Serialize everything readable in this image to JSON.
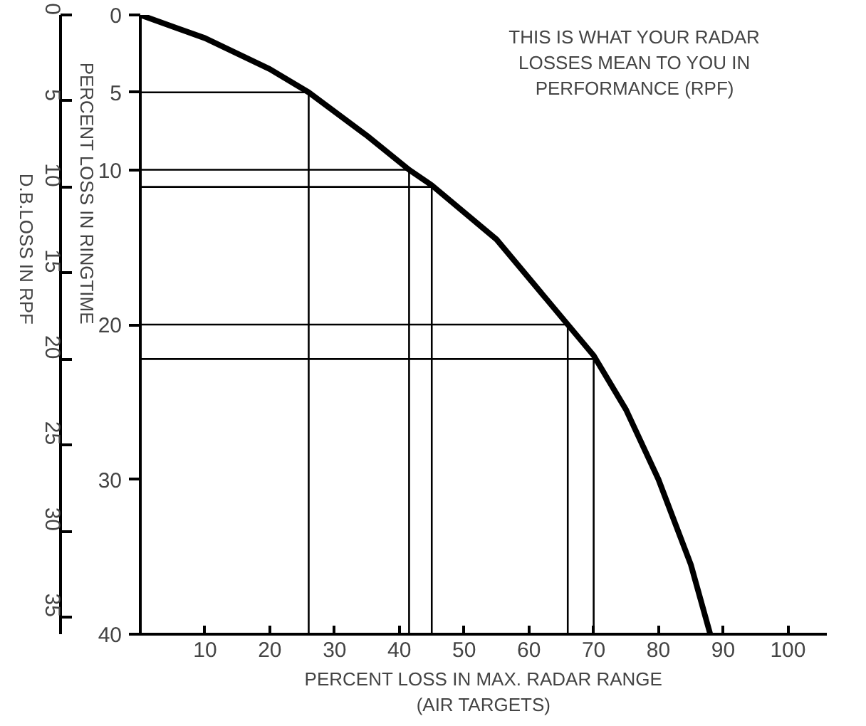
{
  "chart_data": {
    "type": "line",
    "annotations": [
      "THIS IS WHAT YOUR RADAR\nLOSSES MEAN TO YOU IN\nPERFORMANCE (RPF)"
    ],
    "xlabel": "PERCENT LOSS IN MAX. RADAR RANGE\n(AIR TARGETS)",
    "ylabel": "PERCENT LOSS IN RINGTIME",
    "y2label": "D.B.LOSS IN RPF",
    "xlim": [
      0,
      106
    ],
    "xticks": [
      10,
      20,
      30,
      40,
      50,
      60,
      70,
      80,
      90,
      100
    ],
    "ylim": [
      40,
      0
    ],
    "yticks": [
      0,
      5,
      10,
      20,
      30,
      40
    ],
    "y2lim": [
      36,
      0
    ],
    "y2ticks": [
      0,
      5,
      10,
      15,
      20,
      25,
      30,
      35
    ],
    "grid": false,
    "series": [
      {
        "color": "#000000",
        "x": [
          0,
          10,
          20,
          26,
          35,
          41.5,
          45,
          55,
          66,
          70,
          75,
          80,
          85,
          88
        ],
        "values": [
          0,
          1.5,
          3.5,
          5,
          7.8,
          10,
          11,
          14.5,
          20,
          22,
          25.5,
          30,
          35.5,
          40
        ]
      },
      {
        "color": "#000000",
        "x": [
          0,
          26,
          26
        ],
        "values": [
          5,
          5,
          40
        ]
      },
      {
        "color": "#000000",
        "x": [
          0,
          41.5,
          41.5
        ],
        "values": [
          10,
          10,
          40
        ]
      },
      {
        "color": "#000000",
        "x": [
          0,
          66,
          66
        ],
        "values": [
          20,
          20,
          40
        ]
      },
      {
        "color": "#000000",
        "axis": "y2",
        "x": [
          0,
          45,
          45
        ],
        "values": [
          10,
          10,
          36
        ]
      },
      {
        "color": "#000000",
        "axis": "y2",
        "x": [
          0,
          70,
          70
        ],
        "values": [
          20,
          20,
          36
        ]
      }
    ]
  }
}
